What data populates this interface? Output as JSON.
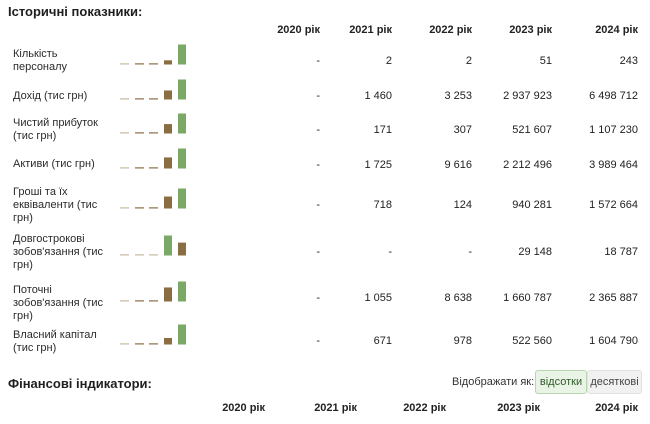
{
  "historical": {
    "title": "Історичні показники:",
    "years": [
      "2020 рік",
      "2021 рік",
      "2022 рік",
      "2023 рік",
      "2024 рік"
    ],
    "rows": [
      {
        "label": "Кількість персоналу",
        "values": [
          "-",
          "2",
          "2",
          "51",
          "243"
        ],
        "spark": [
          0,
          2,
          2,
          51,
          243
        ]
      },
      {
        "label": "Дохід (тис грн)",
        "values": [
          "-",
          "1 460",
          "3 253",
          "2 937 923",
          "6 498 712"
        ],
        "spark": [
          0,
          1460,
          3253,
          2937923,
          6498712
        ]
      },
      {
        "label": "Чистий прибуток (тис грн)",
        "values": [
          "-",
          "171",
          "307",
          "521 607",
          "1 107 230"
        ],
        "spark": [
          0,
          171,
          307,
          521607,
          1107230
        ]
      },
      {
        "label": "Активи (тис грн)",
        "values": [
          "-",
          "1 725",
          "9 616",
          "2 212 496",
          "3 989 464"
        ],
        "spark": [
          0,
          1725,
          9616,
          2212496,
          3989464
        ]
      },
      {
        "label": "Гроші та їх еквіваленти (тис грн)",
        "values": [
          "-",
          "718",
          "124",
          "940 281",
          "1 572 664"
        ],
        "spark": [
          0,
          718,
          124,
          940281,
          1572664
        ]
      },
      {
        "label": "Довгострокові зобов'язання (тис грн)",
        "values": [
          "-",
          "-",
          "-",
          "29 148",
          "18 787"
        ],
        "spark": [
          0,
          0,
          0,
          29148,
          18787
        ]
      },
      {
        "label": "Поточні зобов'язання (тис грн)",
        "values": [
          "-",
          "1 055",
          "8 638",
          "1 660 787",
          "2 365 887"
        ],
        "spark": [
          0,
          1055,
          8638,
          1660787,
          2365887
        ]
      },
      {
        "label": "Власний капітал (тис грн)",
        "values": [
          "-",
          "671",
          "978",
          "522 560",
          "1 604 790"
        ],
        "spark": [
          0,
          671,
          978,
          522560,
          1604790
        ]
      }
    ]
  },
  "financial": {
    "title": "Фінансові індикатори:",
    "display_label": "Відображати як:",
    "toggle": {
      "percent": "відсотки",
      "decimal": "десяткові"
    },
    "years": [
      "2020 рік",
      "2021 рік",
      "2022 рік",
      "2023 рік",
      "2024 рік"
    ]
  },
  "colors": {
    "bar_green": "#7aa866",
    "bar_brown": "#8a6d43",
    "baseline": "#c9b8a0"
  }
}
